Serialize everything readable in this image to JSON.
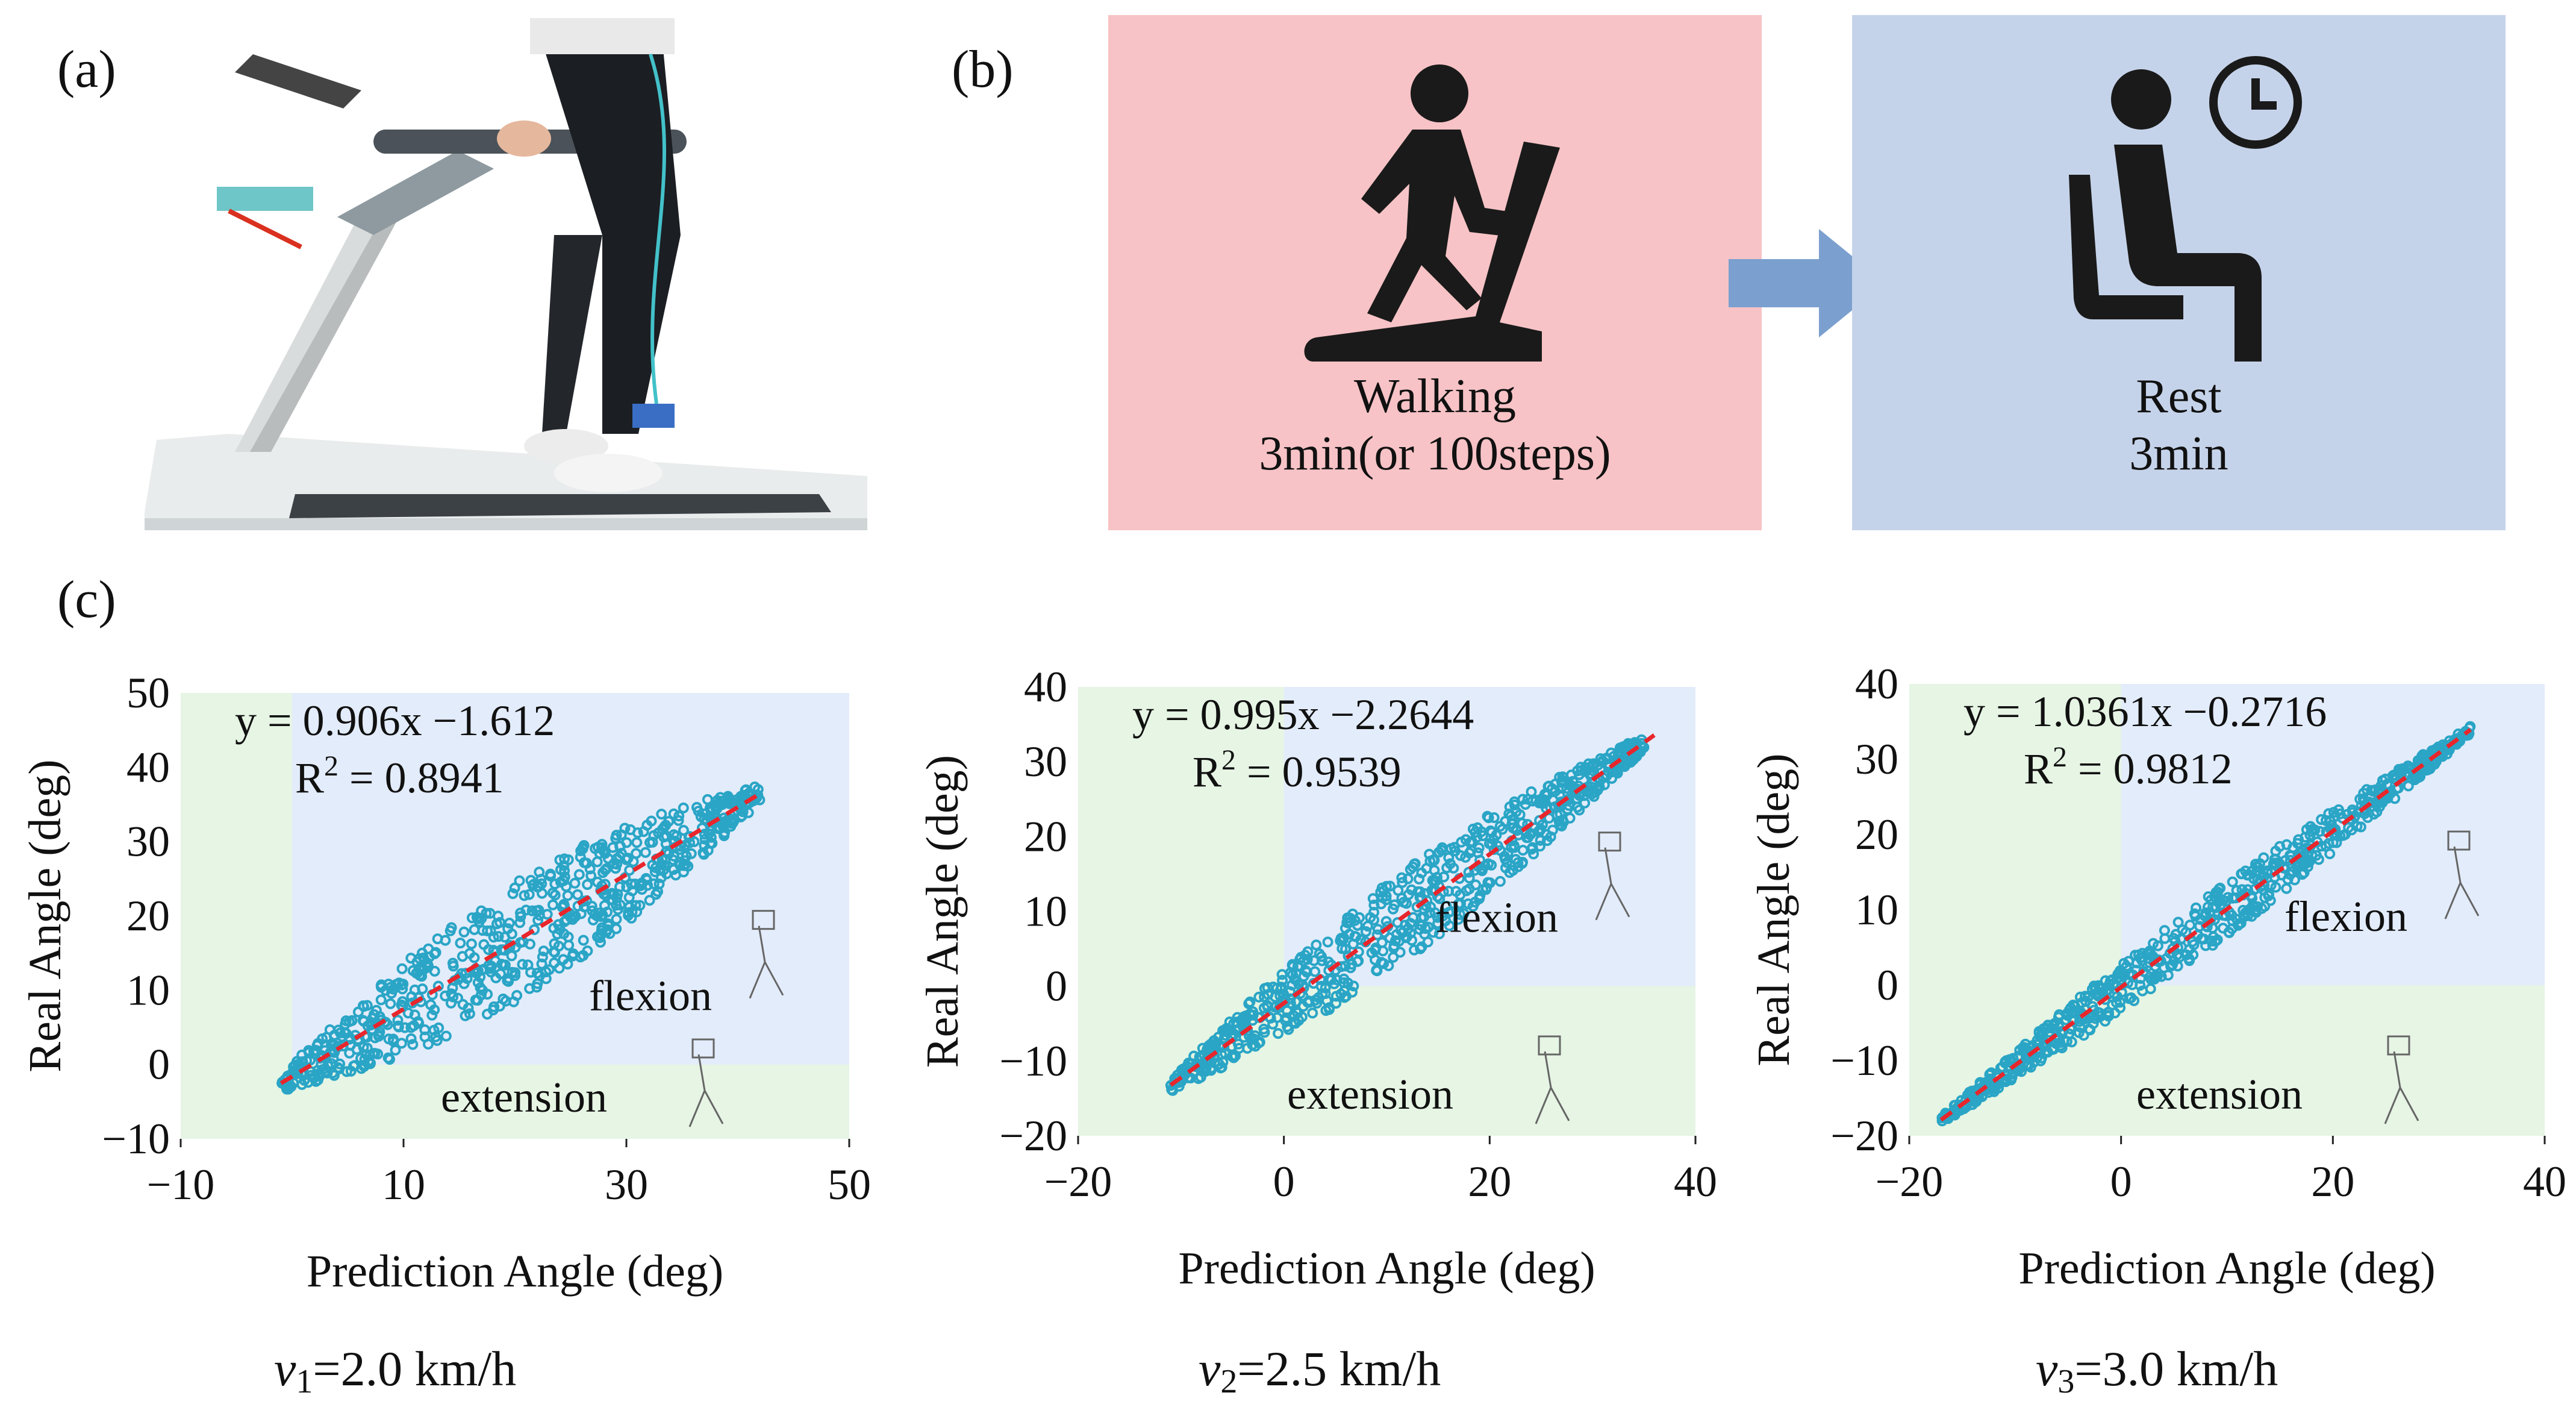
{
  "panels": {
    "a_label": "(a)",
    "b_label": "(b)",
    "c_label": "(c)"
  },
  "protocol": {
    "walk_title": "Walking",
    "walk_duration": "3min(or 100steps)",
    "rest_title": "Rest",
    "rest_duration": "3min",
    "walk_color": "#f7c3c6",
    "rest_color": "#c5d3ea",
    "arrow_color": "#7ba0cf",
    "icon_color": "#1a1a1a"
  },
  "speeds": [
    {
      "symbol": "v",
      "sub": "1",
      "value": "=2.0 km/h"
    },
    {
      "symbol": "v",
      "sub": "2",
      "value": "=2.5 km/h"
    },
    {
      "symbol": "v",
      "sub": "3",
      "value": "=3.0 km/h"
    }
  ],
  "chart_data": [
    {
      "type": "scatter",
      "xlabel": "Prediction Angle (deg)",
      "ylabel": "Real Angle (deg)",
      "xlim": [
        -10,
        50
      ],
      "ylim": [
        -10,
        50
      ],
      "xticks": [
        "−10",
        "10",
        "30",
        "50"
      ],
      "xtick_values": [
        -10,
        10,
        30,
        50
      ],
      "yticks": [
        "−10",
        "0",
        "10",
        "20",
        "30",
        "40",
        "50"
      ],
      "ytick_values": [
        -10,
        0,
        10,
        20,
        30,
        40,
        50
      ],
      "equation": "y = 0.906x −1.612",
      "r2_prefix": "R",
      "r2_sup": "2",
      "r2_value": " = 0.8941",
      "fit": {
        "slope": 0.906,
        "intercept": -1.612,
        "x_range": [
          -1,
          42
        ]
      },
      "scatter": {
        "x_range": [
          -1,
          42
        ],
        "spread": 8,
        "color": "#2aa5c6"
      },
      "regions": [
        {
          "label": "flexion",
          "color": "#e3ecfa"
        },
        {
          "label": "extension",
          "color": "#e6f5e4"
        }
      ],
      "fit_color": "#e8262b"
    },
    {
      "type": "scatter",
      "xlabel": "Prediction Angle (deg)",
      "ylabel": "Real Angle (deg)",
      "xlim": [
        -20,
        40
      ],
      "ylim": [
        -20,
        40
      ],
      "xticks": [
        "−20",
        "0",
        "20",
        "40"
      ],
      "xtick_values": [
        -20,
        0,
        20,
        40
      ],
      "yticks": [
        "−20",
        "−10",
        "0",
        "10",
        "20",
        "30",
        "40"
      ],
      "ytick_values": [
        -20,
        -10,
        0,
        10,
        20,
        30,
        40
      ],
      "equation": "y = 0.995x −2.2644",
      "r2_prefix": "R",
      "r2_sup": "2",
      "r2_value": " = 0.9539",
      "fit": {
        "slope": 0.995,
        "intercept": -2.2644,
        "x_range": [
          -11,
          36
        ]
      },
      "scatter": {
        "x_range": [
          -11,
          35
        ],
        "spread": 6,
        "color": "#2aa5c6"
      },
      "regions": [
        {
          "label": "flexion",
          "color": "#e3ecfa"
        },
        {
          "label": "extension",
          "color": "#e6f5e4"
        }
      ],
      "fit_color": "#e8262b"
    },
    {
      "type": "scatter",
      "xlabel": "Prediction Angle (deg)",
      "ylabel": "Real Angle (deg)",
      "xlim": [
        -20,
        40
      ],
      "ylim": [
        -20,
        40
      ],
      "xticks": [
        "−20",
        "0",
        "20",
        "40"
      ],
      "xtick_values": [
        -20,
        0,
        20,
        40
      ],
      "yticks": [
        "−20",
        "−10",
        "0",
        "10",
        "20",
        "30",
        "40"
      ],
      "ytick_values": [
        -20,
        -10,
        0,
        10,
        20,
        30,
        40
      ],
      "equation": "y = 1.0361x −0.2716",
      "r2_prefix": "R",
      "r2_sup": "2",
      "r2_value": " = 0.9812",
      "fit": {
        "slope": 1.0361,
        "intercept": -0.2716,
        "x_range": [
          -17,
          33
        ]
      },
      "scatter": {
        "x_range": [
          -17,
          33
        ],
        "spread": 3.5,
        "color": "#2aa5c6"
      },
      "regions": [
        {
          "label": "flexion",
          "color": "#e3ecfa"
        },
        {
          "label": "extension",
          "color": "#e6f5e4"
        }
      ],
      "fit_color": "#e8262b"
    }
  ]
}
